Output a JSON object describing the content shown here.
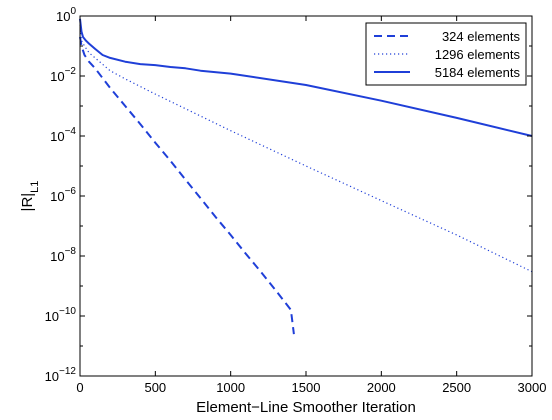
{
  "chart_data": {
    "type": "line",
    "xlabel": "Element−Line Smoother Iteration",
    "ylabel": "|R|",
    "ylabel_subscript": "L1",
    "xlim": [
      0,
      3000
    ],
    "ylim": [
      1e-12,
      1
    ],
    "y_scale": "log",
    "grid": false,
    "legend_position": "top-right",
    "x_ticks": [
      0,
      500,
      1000,
      1500,
      2000,
      2500,
      3000
    ],
    "x_tick_labels": [
      "0",
      "500",
      "1000",
      "1500",
      "2000",
      "2500",
      "3000"
    ],
    "y_ticks": [
      {
        "value": 1,
        "base": "10",
        "exp": "0"
      },
      {
        "value": 0.01,
        "base": "10",
        "exp": "−2"
      },
      {
        "value": 0.0001,
        "base": "10",
        "exp": "−4"
      },
      {
        "value": 1e-06,
        "base": "10",
        "exp": "−6"
      },
      {
        "value": 1e-08,
        "base": "10",
        "exp": "−8"
      },
      {
        "value": 1e-10,
        "base": "10",
        "exp": "−10"
      },
      {
        "value": 1e-12,
        "base": "10",
        "exp": "−12"
      }
    ],
    "series": [
      {
        "name": "324 elements",
        "style": "dashed",
        "color": "#1f3fd8",
        "x": [
          0,
          10,
          30,
          60,
          100,
          200,
          300,
          400,
          500,
          600,
          700,
          800,
          900,
          1000,
          1100,
          1200,
          1300,
          1400,
          1420
        ],
        "y": [
          0.2,
          0.1,
          0.05,
          0.03,
          0.018,
          0.004,
          0.001,
          0.00025,
          6e-05,
          1.5e-05,
          3.5e-06,
          8.5e-07,
          2e-07,
          5e-08,
          1.2e-08,
          3e-09,
          7e-10,
          1.6e-10,
          2.5e-11
        ]
      },
      {
        "name": "1296 elements",
        "style": "dotted",
        "color": "#1f3fd8",
        "x": [
          0,
          10,
          30,
          60,
          100,
          200,
          300,
          500,
          1000,
          1500,
          2000,
          2500,
          3000
        ],
        "y": [
          0.5,
          0.15,
          0.1,
          0.06,
          0.04,
          0.015,
          0.008,
          0.0025,
          0.00015,
          1e-05,
          7e-07,
          5e-08,
          3e-09
        ]
      },
      {
        "name": "5184 elements",
        "style": "solid",
        "color": "#1f3fd8",
        "x": [
          0,
          10,
          20,
          40,
          60,
          100,
          150,
          200,
          300,
          400,
          500,
          600,
          700,
          800,
          1000,
          1500,
          2000,
          2500,
          3000
        ],
        "y": [
          0.8,
          0.3,
          0.2,
          0.15,
          0.12,
          0.08,
          0.05,
          0.04,
          0.03,
          0.025,
          0.023,
          0.02,
          0.018,
          0.015,
          0.012,
          0.005,
          0.0015,
          0.0004,
          0.0001
        ]
      }
    ]
  }
}
